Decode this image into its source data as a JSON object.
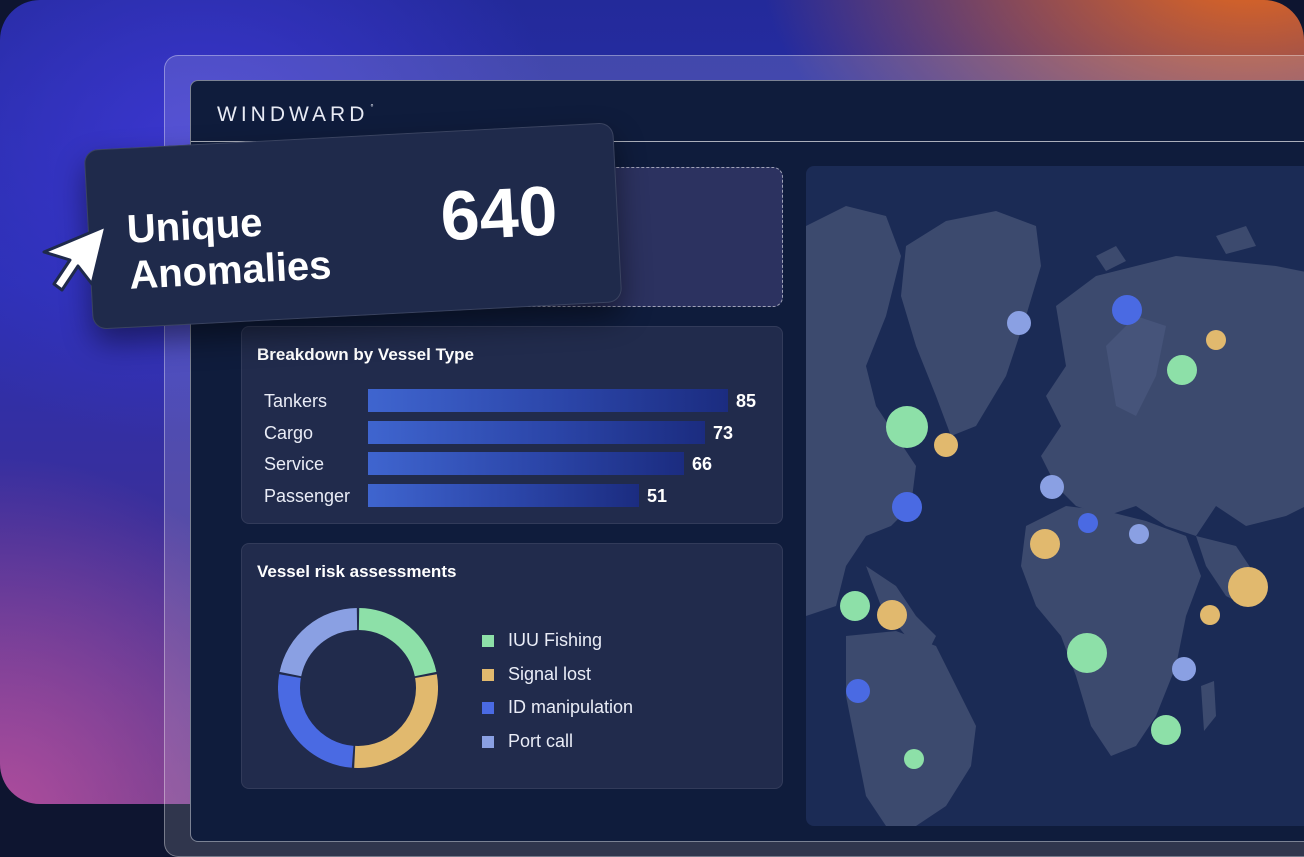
{
  "brand": {
    "name": "WINDWARD",
    "mark": "°"
  },
  "callout": {
    "label": "Unique Anomalies",
    "value": "640"
  },
  "breakdown": {
    "title": "Breakdown by Vessel Type",
    "items": [
      {
        "label": "Tankers",
        "value": "85"
      },
      {
        "label": "Cargo",
        "value": "73"
      },
      {
        "label": "Service",
        "value": "66"
      },
      {
        "label": "Passenger",
        "value": "51"
      }
    ],
    "max_value": 85
  },
  "risk": {
    "title": "Vessel risk assessments",
    "items": [
      {
        "label": "IUU Fishing",
        "color": "#8de0a8",
        "share": 0.22
      },
      {
        "label": "Signal lost",
        "color": "#e1b96e",
        "share": 0.29
      },
      {
        "label": "ID manipulation",
        "color": "#4a6ae3",
        "share": 0.27
      },
      {
        "label": "Port call",
        "color": "#8aa0e3",
        "share": 0.22
      }
    ]
  },
  "map": {
    "icon": "world-map",
    "markers": [
      {
        "category": "Port call",
        "color": "#8aa0e3"
      },
      {
        "category": "ID manipulation",
        "color": "#4a6ae3"
      },
      {
        "category": "Signal lost",
        "color": "#e1b96e"
      },
      {
        "category": "IUU Fishing",
        "color": "#8de0a8"
      }
    ]
  }
}
